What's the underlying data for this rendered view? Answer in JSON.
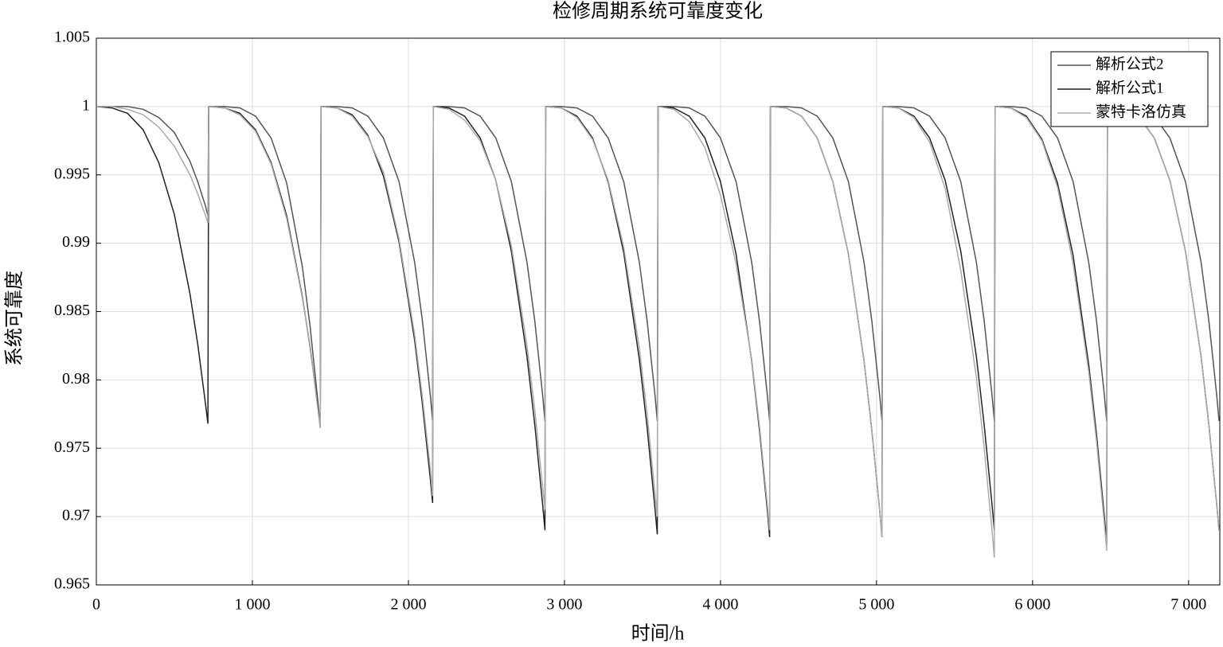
{
  "chart_data": {
    "type": "line",
    "title": "检修周期系统可靠度变化",
    "xlabel": "时间/h",
    "ylabel": "系统可靠度",
    "x": [
      0,
      100,
      200,
      300,
      400,
      500,
      600,
      650,
      700,
      715,
      720,
      820,
      920,
      1020,
      1120,
      1220,
      1320,
      1370,
      1420,
      1435,
      1440,
      1540,
      1640,
      1740,
      1840,
      1940,
      2040,
      2090,
      2140,
      2155,
      2160,
      2260,
      2360,
      2460,
      2560,
      2660,
      2760,
      2810,
      2860,
      2875,
      2880,
      2980,
      3080,
      3180,
      3280,
      3380,
      3480,
      3530,
      3580,
      3595,
      3600,
      3700,
      3800,
      3900,
      4000,
      4100,
      4200,
      4250,
      4300,
      4315,
      4320,
      4420,
      4520,
      4620,
      4720,
      4820,
      4920,
      4970,
      5020,
      5035,
      5040,
      5140,
      5240,
      5340,
      5440,
      5540,
      5640,
      5690,
      5740,
      5755,
      5760,
      5860,
      5960,
      6060,
      6160,
      6260,
      6360,
      6410,
      6460,
      6475,
      6480,
      6580,
      6680,
      6780,
      6880,
      6980,
      7080,
      7130,
      7180,
      7195
    ],
    "series": [
      {
        "name": "解析公式2",
        "color": "#555555",
        "values": [
          1,
          1,
          1,
          0.9998,
          0.9992,
          0.9981,
          0.996,
          0.9945,
          0.9927,
          0.992,
          1,
          1,
          0.9999,
          0.9993,
          0.9977,
          0.9944,
          0.9883,
          0.9839,
          0.9784,
          0.9765,
          1,
          1,
          0.9999,
          0.9993,
          0.9977,
          0.9945,
          0.9886,
          0.9843,
          0.9789,
          0.977,
          1,
          1,
          0.9999,
          0.9993,
          0.9977,
          0.9945,
          0.9886,
          0.9843,
          0.9789,
          0.977,
          1,
          1,
          0.9999,
          0.9993,
          0.9977,
          0.9945,
          0.9886,
          0.9843,
          0.9789,
          0.977,
          1,
          1,
          0.9999,
          0.9993,
          0.9977,
          0.9945,
          0.9886,
          0.9843,
          0.9789,
          0.977,
          1,
          1,
          0.9999,
          0.9993,
          0.9977,
          0.9945,
          0.9886,
          0.9843,
          0.9789,
          0.977,
          1,
          1,
          0.9999,
          0.9993,
          0.9977,
          0.9945,
          0.9886,
          0.9843,
          0.9789,
          0.977,
          1,
          1,
          0.9999,
          0.9993,
          0.9977,
          0.9945,
          0.9886,
          0.9843,
          0.9789,
          0.977,
          1,
          1,
          0.9999,
          0.9993,
          0.9977,
          0.9945,
          0.9886,
          0.9843,
          0.9789,
          0.977
        ]
      },
      {
        "name": "解析公式1",
        "color": "#222222",
        "values": [
          1,
          0.9999,
          0.9995,
          0.9983,
          0.9959,
          0.9921,
          0.9863,
          0.9826,
          0.9782,
          0.9768,
          1,
          0.9999,
          0.9995,
          0.9983,
          0.9959,
          0.992,
          0.9861,
          0.9824,
          0.978,
          0.9765,
          1,
          0.9999,
          0.9994,
          0.9979,
          0.9949,
          0.9901,
          0.9829,
          0.9782,
          0.9728,
          0.971,
          1,
          0.9999,
          0.9993,
          0.9977,
          0.9946,
          0.9894,
          0.9817,
          0.9767,
          0.9709,
          0.969,
          1,
          0.9999,
          0.9993,
          0.9977,
          0.9945,
          0.9893,
          0.9815,
          0.9765,
          0.9706,
          0.9687,
          1,
          0.9999,
          0.9993,
          0.9977,
          0.9945,
          0.9892,
          0.9814,
          0.9763,
          0.9705,
          0.9685,
          1,
          0.9999,
          0.9993,
          0.9977,
          0.9945,
          0.9892,
          0.9814,
          0.9763,
          0.9705,
          0.9685,
          1,
          0.9999,
          0.9993,
          0.9977,
          0.9946,
          0.9894,
          0.9817,
          0.9767,
          0.9709,
          0.969,
          1,
          0.9999,
          0.9993,
          0.9976,
          0.9944,
          0.9891,
          0.9811,
          0.976,
          0.97,
          0.968,
          1,
          0.9999,
          0.9993,
          0.9977,
          0.9946,
          0.9894,
          0.9817,
          0.9767,
          0.9709,
          0.969
        ]
      },
      {
        "name": "蒙特卡洛仿真",
        "color": "#aaaaaa",
        "values": [
          1,
          1,
          0.9998,
          0.9994,
          0.9985,
          0.9971,
          0.995,
          0.9936,
          0.992,
          0.9915,
          1,
          0.9999,
          0.9994,
          0.9982,
          0.9958,
          0.9918,
          0.986,
          0.9825,
          0.9778,
          0.9765,
          1,
          0.9999,
          0.9993,
          0.9978,
          0.9952,
          0.9903,
          0.9833,
          0.9787,
          0.9735,
          0.9715,
          1,
          0.9998,
          0.999,
          0.9975,
          0.9946,
          0.9898,
          0.9825,
          0.9778,
          0.9722,
          0.9705,
          1,
          0.9999,
          0.9992,
          0.9976,
          0.9946,
          0.9897,
          0.9823,
          0.9775,
          0.9717,
          0.97,
          1,
          0.9998,
          0.9989,
          0.997,
          0.9935,
          0.9885,
          0.9815,
          0.9766,
          0.9709,
          0.969,
          1,
          0.9999,
          0.9993,
          0.9977,
          0.9945,
          0.9892,
          0.9814,
          0.9763,
          0.9705,
          0.9685,
          1,
          0.9999,
          0.9992,
          0.9974,
          0.994,
          0.988,
          0.9802,
          0.975,
          0.969,
          0.967,
          1,
          0.9999,
          0.9992,
          0.9975,
          0.9941,
          0.9885,
          0.9806,
          0.9755,
          0.9695,
          0.9675,
          1,
          0.9999,
          0.9993,
          0.9977,
          0.9946,
          0.9894,
          0.9817,
          0.9767,
          0.9709,
          0.969
        ]
      }
    ],
    "xlim": [
      0,
      7200
    ],
    "xticks": [
      0,
      {
        "value": 1000,
        "label": "1 000"
      },
      {
        "value": 2000,
        "label": "2 000"
      },
      {
        "value": 3000,
        "label": "3 000"
      },
      {
        "value": 4000,
        "label": "4 000"
      },
      {
        "value": 5000,
        "label": "5 000"
      },
      {
        "value": 6000,
        "label": "6 000"
      },
      {
        "value": 7000,
        "label": "7 000"
      }
    ],
    "ylim": [
      0.965,
      1.005
    ],
    "yticks": [
      0.965,
      0.97,
      0.975,
      0.98,
      0.985,
      0.99,
      0.995,
      1,
      1.005
    ],
    "grid": true,
    "legend": "upper right"
  }
}
